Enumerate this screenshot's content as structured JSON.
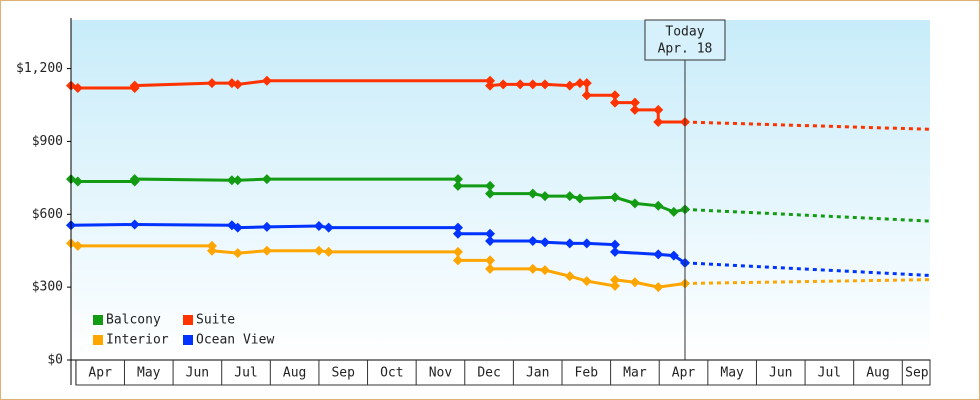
{
  "chart_data": {
    "type": "line",
    "annotation": {
      "title": "Today",
      "date": "Apr. 18",
      "x": 12.53
    },
    "xlim": [
      -0.1,
      17.57
    ],
    "xticks": [
      {
        "value": 0.5,
        "label": "Apr"
      },
      {
        "value": 1.5,
        "label": "May"
      },
      {
        "value": 2.5,
        "label": "Jun"
      },
      {
        "value": 3.5,
        "label": "Jul"
      },
      {
        "value": 4.5,
        "label": "Aug"
      },
      {
        "value": 5.5,
        "label": "Sep"
      },
      {
        "value": 6.5,
        "label": "Oct"
      },
      {
        "value": 7.5,
        "label": "Nov"
      },
      {
        "value": 8.5,
        "label": "Dec"
      },
      {
        "value": 9.5,
        "label": "Jan"
      },
      {
        "value": 10.5,
        "label": "Feb"
      },
      {
        "value": 11.5,
        "label": "Mar"
      },
      {
        "value": 12.5,
        "label": "Apr"
      },
      {
        "value": 13.5,
        "label": "May"
      },
      {
        "value": 14.5,
        "label": "Jun"
      },
      {
        "value": 15.5,
        "label": "Jul"
      },
      {
        "value": 16.5,
        "label": "Aug"
      },
      {
        "value": 17.3,
        "label": "Sep"
      }
    ],
    "ylim": [
      0,
      1400
    ],
    "yticks": [
      {
        "value": 0,
        "label": "$0"
      },
      {
        "value": 300,
        "label": "$300"
      },
      {
        "value": 600,
        "label": "$600"
      },
      {
        "value": 900,
        "label": "$900"
      },
      {
        "value": 1200,
        "label": "$1,200"
      }
    ],
    "series": [
      {
        "name": "Balcony",
        "color": "#139c13",
        "x": [
          -0.1,
          0.04,
          1.21,
          1.21,
          3.21,
          3.33,
          3.93,
          7.86,
          7.86,
          8.52,
          8.52,
          9.4,
          9.65,
          10.16,
          10.37,
          11.09,
          11.5,
          11.98,
          12.3,
          12.53
        ],
        "values": [
          745,
          735,
          735,
          745,
          740,
          740,
          745,
          745,
          717,
          717,
          685,
          685,
          675,
          675,
          665,
          670,
          645,
          635,
          610,
          620
        ],
        "forecast_x": [
          12.53,
          17.57
        ],
        "forecast_values": [
          620,
          572
        ]
      },
      {
        "name": "Suite",
        "color": "#ff3300",
        "x": [
          -0.1,
          0.04,
          1.21,
          1.21,
          2.8,
          3.21,
          3.33,
          3.93,
          8.52,
          8.52,
          8.79,
          9.14,
          9.4,
          9.65,
          10.16,
          10.37,
          10.51,
          10.51,
          11.09,
          11.09,
          11.5,
          11.5,
          11.98,
          11.98,
          12.53
        ],
        "values": [
          1130,
          1120,
          1120,
          1130,
          1140,
          1140,
          1135,
          1150,
          1150,
          1130,
          1135,
          1135,
          1135,
          1135,
          1130,
          1140,
          1140,
          1090,
          1090,
          1060,
          1060,
          1030,
          1030,
          980,
          980
        ],
        "forecast_x": [
          12.53,
          17.57
        ],
        "forecast_values": [
          980,
          950
        ]
      },
      {
        "name": "Interior",
        "color": "#ffa500",
        "x": [
          -0.1,
          0.04,
          2.8,
          2.8,
          3.33,
          3.93,
          5.0,
          5.2,
          7.86,
          7.86,
          8.52,
          8.52,
          9.4,
          9.65,
          10.16,
          10.51,
          11.09,
          11.09,
          11.5,
          11.98,
          12.53
        ],
        "values": [
          480,
          470,
          470,
          450,
          440,
          450,
          450,
          445,
          445,
          410,
          410,
          375,
          375,
          370,
          345,
          325,
          305,
          330,
          320,
          300,
          315
        ],
        "forecast_x": [
          12.53,
          17.57
        ],
        "forecast_values": [
          315,
          331
        ]
      },
      {
        "name": "Ocean View",
        "color": "#0033ff",
        "x": [
          -0.1,
          1.21,
          3.21,
          3.33,
          3.93,
          5.0,
          5.2,
          7.86,
          7.86,
          8.52,
          8.52,
          9.4,
          9.65,
          10.16,
          10.51,
          11.09,
          11.09,
          11.98,
          12.3,
          12.53
        ],
        "values": [
          555,
          558,
          555,
          545,
          548,
          552,
          545,
          545,
          520,
          520,
          490,
          490,
          485,
          480,
          480,
          475,
          445,
          435,
          430,
          400
        ],
        "forecast_x": [
          12.53,
          17.57
        ],
        "forecast_values": [
          400,
          348
        ]
      }
    ]
  }
}
